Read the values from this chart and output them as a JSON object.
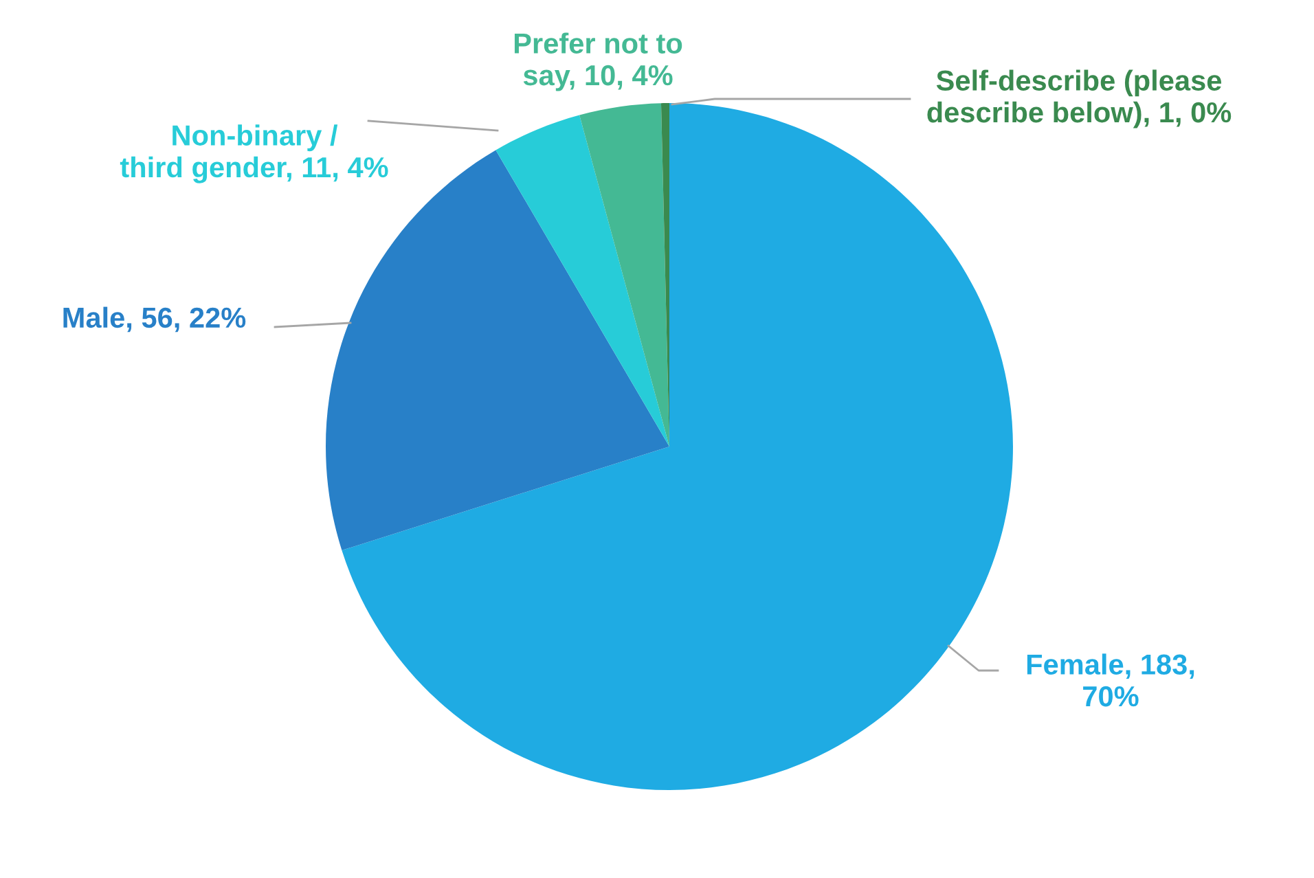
{
  "chart_data": {
    "type": "pie",
    "categories": [
      "Female",
      "Male",
      "Non-binary /\nthird gender",
      "Prefer not to\nsay",
      "Self-describe (please\ndescribe below)"
    ],
    "values": [
      183,
      56,
      11,
      10,
      1
    ],
    "colors": [
      "#1fabe3",
      "#2880c8",
      "#27ccd8",
      "#44b994",
      "#3a8a4f"
    ],
    "value_labels": [
      "183,\n70%",
      "56, 22%",
      "11, 4%",
      "10, 4%",
      "1, 0%"
    ],
    "legend": false
  }
}
